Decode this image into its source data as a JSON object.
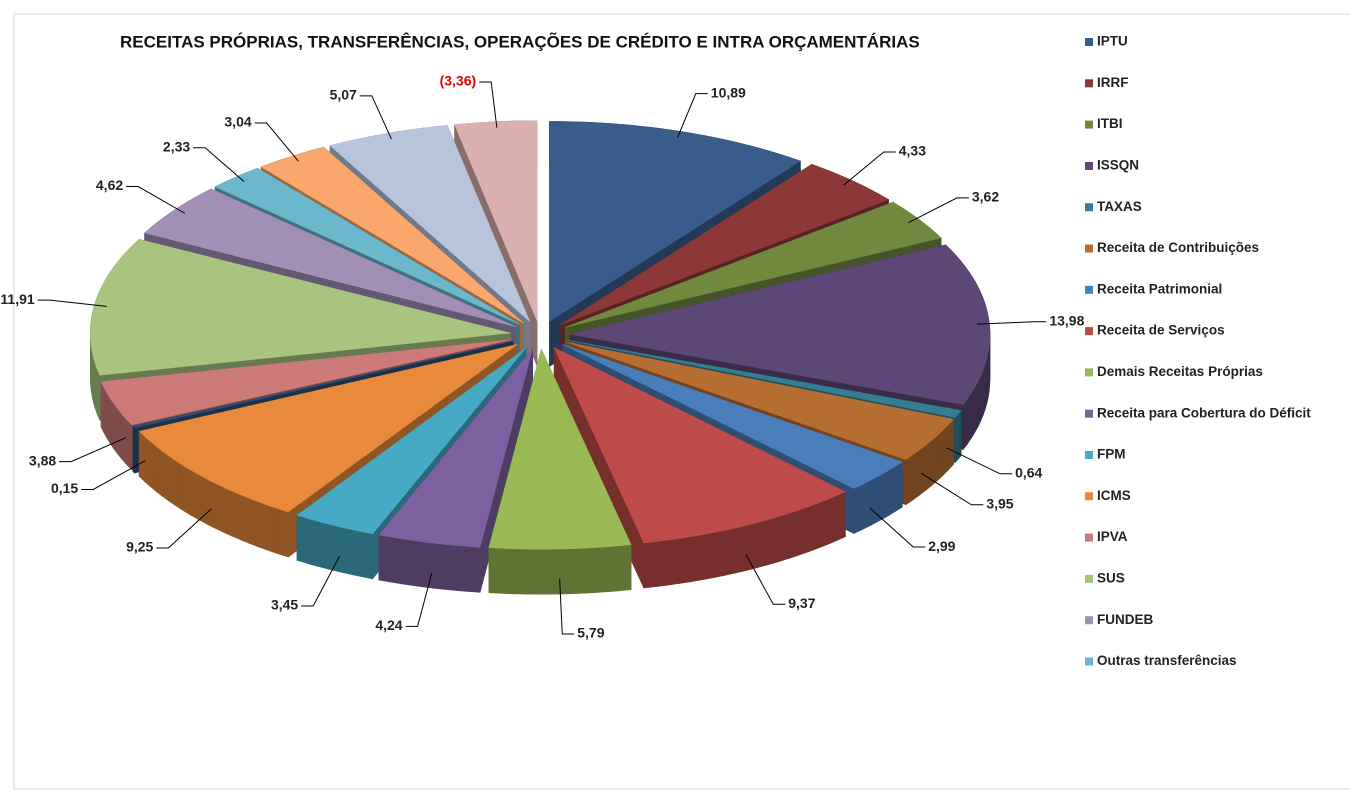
{
  "chart_data": {
    "type": "pie3d",
    "title": "RECEITAS PRÓPRIAS, TRANSFERÊNCIAS, OPERAÇÕES DE CRÉDITO E INTRA ORÇAMENTÁRIAS",
    "categories": [
      "IPTU",
      "IRRF",
      "ITBI",
      "ISSQN",
      "TAXAS",
      "Receita de Contribuições",
      "Receita Patrimonial",
      "Receita de Serviços",
      "Demais Receitas Próprias",
      "Receita para Cobertura do Déficit",
      "FPM",
      "ICMS",
      null,
      "IPVA",
      "SUS",
      "FUNDEB",
      "Outras transferências",
      null,
      null,
      null
    ],
    "values": [
      10.89,
      4.33,
      3.62,
      13.98,
      0.64,
      3.95,
      2.99,
      9.37,
      5.79,
      4.24,
      3.45,
      9.25,
      0.15,
      3.88,
      11.91,
      4.62,
      2.33,
      3.04,
      5.07,
      -3.36
    ],
    "value_labels": [
      "10,89",
      "4,33",
      "3,62",
      "13,98",
      "0,64",
      "3,95",
      "2,99",
      "9,37",
      "5,79",
      "4,24",
      "3,45",
      "9,25",
      "0,15",
      "3,88",
      "11,91",
      "4,62",
      "2,33",
      "3,04",
      "5,07",
      "(3,36)"
    ],
    "colors": [
      "#385D8A",
      "#8C3836",
      "#71893F",
      "#5C4776",
      "#357D91",
      "#B66D31",
      "#4A7EBB",
      "#BE4B48",
      "#98B954",
      "#7D60A0",
      "#46AAC5",
      "#E8893B",
      "#2C4D75",
      "#CD7B79",
      "#A9C47F",
      "#A18FB8",
      "#6BB7CC",
      "#F9A76C",
      "#B7C4DC",
      "#DCB0B0"
    ],
    "legend": "right"
  }
}
